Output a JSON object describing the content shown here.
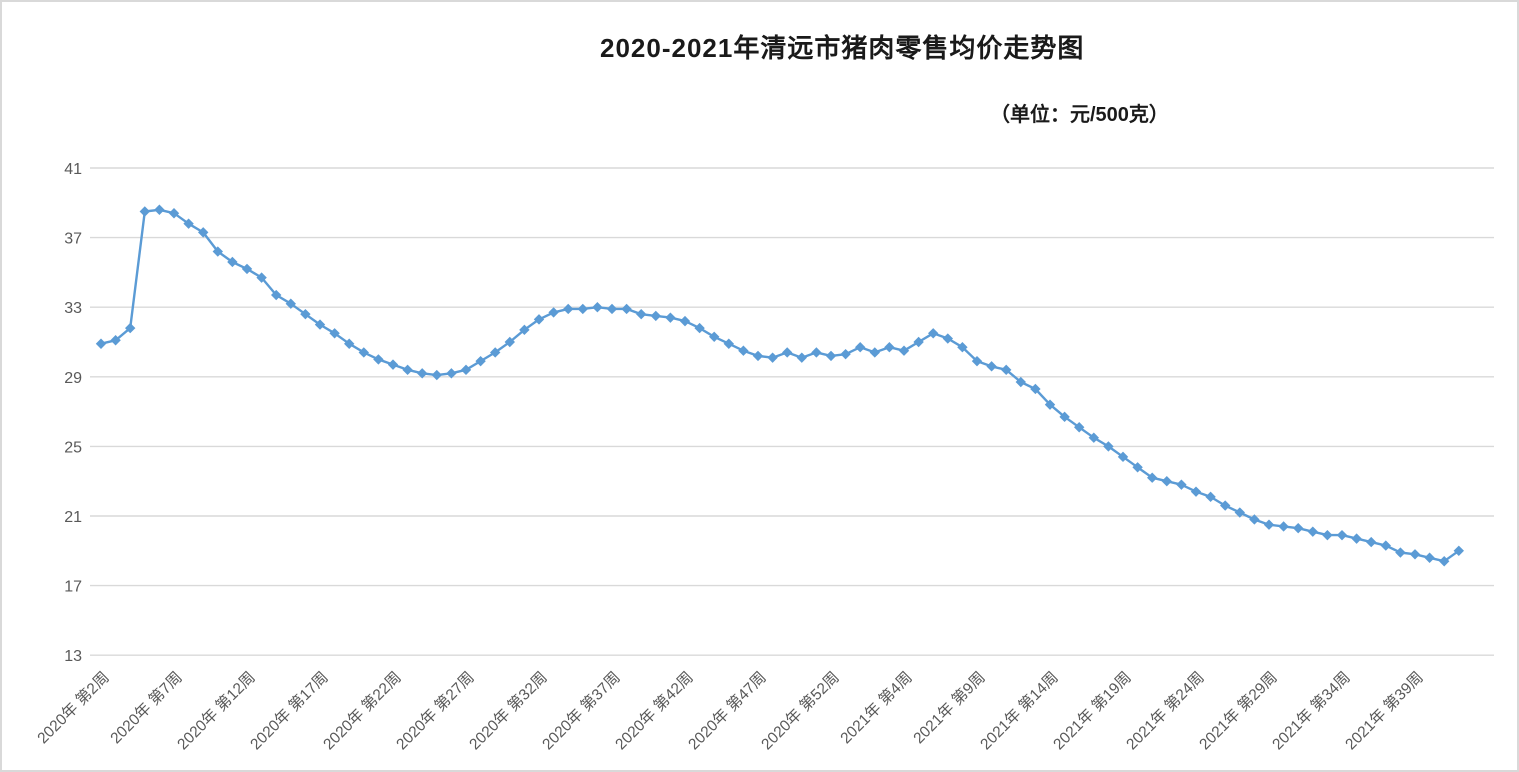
{
  "title": "2020-2021年清远市猪肉零售均价走势图",
  "unit_label": "（单位：元/500克）",
  "colors": {
    "line": "#5b9bd5",
    "marker": "#5b9bd5",
    "grid": "#d9d9d9",
    "tick_text": "#595959",
    "title_text": "#1a1a1a",
    "background": "#ffffff"
  },
  "chart_data": {
    "type": "line",
    "title": "2020-2021年清远市猪肉零售均价走势图",
    "unit": "元/500克",
    "legend": "none",
    "grid": "horizontal",
    "marker_shape": "diamond",
    "y_axis": {
      "min": 13,
      "max": 41,
      "tick_step": 4,
      "ticks": [
        41,
        37,
        33,
        29,
        25,
        21,
        17,
        13
      ]
    },
    "x_axis": {
      "tick_every_n_points": 5,
      "tick_labels": [
        "2020年 第2周",
        "2020年 第7周",
        "2020年 第12周",
        "2020年 第17周",
        "2020年 第22周",
        "2020年 第27周",
        "2020年 第32周",
        "2020年 第37周",
        "2020年 第42周",
        "2020年 第47周",
        "2020年 第52周",
        "2021年 第4周",
        "2021年 第9周",
        "2021年 第14周",
        "2021年 第19周",
        "2021年 第24周",
        "2021年 第29周",
        "2021年 第34周",
        "2021年 第39周"
      ]
    },
    "series": [
      {
        "name": "猪肉零售均价",
        "start": "2020年第2周",
        "values": [
          30.9,
          31.1,
          31.8,
          38.5,
          38.6,
          38.4,
          37.8,
          37.3,
          36.2,
          35.6,
          35.2,
          34.7,
          33.7,
          33.2,
          32.6,
          32.0,
          31.5,
          30.9,
          30.4,
          30.0,
          29.7,
          29.4,
          29.2,
          29.1,
          29.2,
          29.4,
          29.9,
          30.4,
          31.0,
          31.7,
          32.3,
          32.7,
          32.9,
          32.9,
          33.0,
          32.9,
          32.9,
          32.6,
          32.5,
          32.4,
          32.2,
          31.8,
          31.3,
          30.9,
          30.5,
          30.2,
          30.1,
          30.4,
          30.1,
          30.4,
          30.2,
          30.3,
          30.7,
          30.4,
          30.7,
          30.5,
          31.0,
          31.5,
          31.2,
          30.7,
          29.9,
          29.6,
          29.4,
          28.7,
          28.3,
          27.4,
          26.7,
          26.1,
          25.5,
          25.0,
          24.4,
          23.8,
          23.2,
          23.0,
          22.8,
          22.4,
          22.1,
          21.6,
          21.2,
          20.8,
          20.5,
          20.4,
          20.3,
          20.1,
          19.9,
          19.9,
          19.7,
          19.5,
          19.3,
          18.9,
          18.8,
          18.6,
          18.4,
          19.0
        ]
      }
    ]
  }
}
